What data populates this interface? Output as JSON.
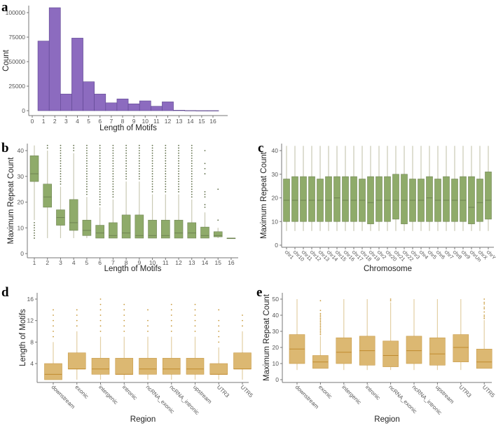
{
  "colors": {
    "hist_fill": "#8c6bbf",
    "hist_stroke": "#5e4690",
    "green_fill": "#8fab6a",
    "green_stroke": "#6f8452",
    "green_whisker": "#c9c9b4",
    "green_dot": "#5c6b45",
    "tan_fill": "#dcb872",
    "tan_stroke": "#c89b49",
    "tan_median": "#c08a2e",
    "tan_whisker": "#e3cfa4",
    "tan_dot": "#c89a3c",
    "axis": "#777777"
  },
  "chart_data": [
    {
      "panel": "a",
      "type": "bar",
      "xlabel": "Length of Motifs",
      "ylabel": "Count",
      "categories": [
        1,
        2,
        3,
        4,
        5,
        6,
        7,
        8,
        9,
        10,
        11,
        12,
        13,
        14,
        15,
        16
      ],
      "values": [
        71000,
        105000,
        17000,
        74000,
        29500,
        17000,
        8000,
        12000,
        7000,
        10000,
        4500,
        9000,
        500,
        200,
        100,
        100
      ],
      "xticks": [
        "0",
        "1",
        "2",
        "3",
        "4",
        "5",
        "6",
        "7",
        "8",
        "9",
        "10",
        "11",
        "12",
        "13",
        "14",
        "15",
        "16"
      ],
      "yticks": [
        "0",
        "25000",
        "50000",
        "75000",
        "100000"
      ],
      "xlim": [
        0,
        16
      ],
      "ylim": [
        0,
        105000
      ]
    },
    {
      "panel": "b",
      "type": "boxplot",
      "xlabel": "Length of Motifs",
      "ylabel": "Maximum Repeat Count",
      "yticks": [
        "0",
        "10",
        "20",
        "30",
        "40"
      ],
      "ylim": [
        0,
        40
      ],
      "boxes": [
        {
          "label": "1",
          "lo": 13,
          "q1": 28,
          "med": 31,
          "q3": 38,
          "hi": 42,
          "out": [
            6,
            7,
            8,
            9,
            10,
            11,
            12
          ]
        },
        {
          "label": "2",
          "lo": 6,
          "q1": 18,
          "med": 22,
          "q3": 27,
          "hi": 40,
          "out": [
            41,
            42
          ]
        },
        {
          "label": "3",
          "lo": 6,
          "q1": 11,
          "med": 14,
          "q3": 17,
          "hi": 26,
          "out": [
            27,
            28,
            29,
            30,
            31,
            32,
            33,
            34,
            35,
            36,
            37,
            38,
            39,
            40,
            41,
            42
          ]
        },
        {
          "label": "4",
          "lo": 6,
          "q1": 9,
          "med": 12,
          "q3": 21,
          "hi": 39,
          "out": [
            40,
            41,
            42
          ]
        },
        {
          "label": "5",
          "lo": 6,
          "q1": 7,
          "med": 9,
          "q3": 13,
          "hi": 22,
          "out": [
            23,
            24,
            25,
            26,
            27,
            28,
            29,
            30,
            31,
            32,
            33,
            34,
            35,
            36,
            37,
            38,
            39,
            40,
            41,
            42
          ]
        },
        {
          "label": "6",
          "lo": 6,
          "q1": 6,
          "med": 8,
          "q3": 11,
          "hi": 18,
          "out": [
            19,
            20,
            21,
            22,
            23,
            24,
            25,
            26,
            27,
            28,
            29,
            30,
            31,
            32,
            33,
            34,
            35,
            36,
            37,
            38,
            39,
            40,
            41,
            42
          ]
        },
        {
          "label": "7",
          "lo": 6,
          "q1": 6,
          "med": 7,
          "q3": 12,
          "hi": 21,
          "out": [
            22,
            23,
            24,
            25,
            26,
            27,
            28,
            29,
            30,
            31,
            32,
            33,
            34,
            35,
            36,
            37,
            38,
            39,
            40,
            41,
            42
          ]
        },
        {
          "label": "8",
          "lo": 6,
          "q1": 6,
          "med": 8,
          "q3": 15,
          "hi": 28,
          "out": [
            29,
            30,
            31,
            32,
            33,
            34,
            35,
            36,
            37,
            38,
            39,
            40,
            41,
            42
          ]
        },
        {
          "label": "9",
          "lo": 6,
          "q1": 6,
          "med": 7,
          "q3": 15,
          "hi": 28,
          "out": [
            29,
            30,
            31,
            32,
            33,
            34,
            35,
            36,
            37,
            38,
            39,
            40,
            41,
            42
          ]
        },
        {
          "label": "10",
          "lo": 6,
          "q1": 6,
          "med": 7,
          "q3": 13,
          "hi": 23,
          "out": [
            24,
            25,
            26,
            27,
            28,
            29,
            30,
            31,
            32,
            33,
            34,
            35,
            36,
            37,
            38,
            39,
            40,
            41,
            42
          ]
        },
        {
          "label": "11",
          "lo": 6,
          "q1": 6,
          "med": 7,
          "q3": 13,
          "hi": 23,
          "out": [
            24,
            25,
            26,
            27,
            28,
            29,
            30,
            31,
            32,
            33,
            34,
            35,
            36,
            37,
            38,
            39,
            40,
            41,
            42
          ]
        },
        {
          "label": "12",
          "lo": 6,
          "q1": 6,
          "med": 8,
          "q3": 13,
          "hi": 23,
          "out": [
            24,
            25,
            26,
            27,
            28,
            29,
            30,
            31,
            32,
            33,
            34,
            35,
            36,
            37,
            38,
            39,
            40,
            41,
            42
          ]
        },
        {
          "label": "13",
          "lo": 6,
          "q1": 6,
          "med": 8,
          "q3": 12,
          "hi": 21,
          "out": [
            22,
            23,
            24,
            25,
            26,
            27,
            28,
            29,
            30,
            31,
            32,
            33,
            34,
            35,
            36,
            37,
            38,
            39,
            40,
            41,
            42
          ]
        },
        {
          "label": "14",
          "lo": 6,
          "q1": 6,
          "med": 7,
          "q3": 10.3,
          "hi": 16,
          "out": [
            18,
            19,
            22,
            23,
            24,
            31,
            33,
            35,
            40
          ]
        },
        {
          "label": "15",
          "lo": 6,
          "q1": 6.5,
          "med": 7,
          "q3": 8.5,
          "hi": 10,
          "out": [
            13,
            25
          ]
        },
        {
          "label": "16",
          "lo": 6,
          "q1": 6,
          "med": 6,
          "q3": 6,
          "hi": 6,
          "out": []
        }
      ]
    },
    {
      "panel": "c",
      "type": "boxplot",
      "xlabel": "Chromosome",
      "ylabel": "Maximum Repeat Count",
      "yticks": [
        "0",
        "10",
        "20",
        "30",
        "40"
      ],
      "ylim": [
        0,
        40
      ],
      "boxes": [
        {
          "label": "chr1",
          "lo": 6,
          "q1": 10,
          "med": 19,
          "q3": 28,
          "hi": 42,
          "out": []
        },
        {
          "label": "chr10",
          "lo": 6,
          "q1": 10,
          "med": 19,
          "q3": 29,
          "hi": 42,
          "out": []
        },
        {
          "label": "chr11",
          "lo": 6,
          "q1": 10,
          "med": 19,
          "q3": 29,
          "hi": 42,
          "out": []
        },
        {
          "label": "chr12",
          "lo": 6,
          "q1": 10,
          "med": 19,
          "q3": 29,
          "hi": 42,
          "out": []
        },
        {
          "label": "chr13",
          "lo": 6,
          "q1": 10,
          "med": 19,
          "q3": 28,
          "hi": 42,
          "out": []
        },
        {
          "label": "chr14",
          "lo": 6,
          "q1": 10,
          "med": 19,
          "q3": 29,
          "hi": 42,
          "out": []
        },
        {
          "label": "chr15",
          "lo": 6,
          "q1": 10,
          "med": 20,
          "q3": 29,
          "hi": 42,
          "out": []
        },
        {
          "label": "chr16",
          "lo": 6,
          "q1": 10,
          "med": 19,
          "q3": 29,
          "hi": 42,
          "out": []
        },
        {
          "label": "chr17",
          "lo": 6,
          "q1": 10,
          "med": 19,
          "q3": 29,
          "hi": 42,
          "out": []
        },
        {
          "label": "chr18",
          "lo": 6,
          "q1": 10,
          "med": 19,
          "q3": 28,
          "hi": 42,
          "out": []
        },
        {
          "label": "chr19",
          "lo": 6,
          "q1": 9,
          "med": 18,
          "q3": 29,
          "hi": 42,
          "out": []
        },
        {
          "label": "chr2",
          "lo": 6,
          "q1": 10,
          "med": 19,
          "q3": 29,
          "hi": 42,
          "out": []
        },
        {
          "label": "chr20",
          "lo": 6,
          "q1": 10,
          "med": 19,
          "q3": 29,
          "hi": 42,
          "out": []
        },
        {
          "label": "chr21",
          "lo": 6,
          "q1": 11,
          "med": 19,
          "q3": 30,
          "hi": 42,
          "out": []
        },
        {
          "label": "chr22",
          "lo": 6,
          "q1": 9,
          "med": 19,
          "q3": 30,
          "hi": 42,
          "out": []
        },
        {
          "label": "chr3",
          "lo": 6,
          "q1": 10,
          "med": 19,
          "q3": 28,
          "hi": 42,
          "out": []
        },
        {
          "label": "chr4",
          "lo": 6,
          "q1": 10,
          "med": 19,
          "q3": 28,
          "hi": 42,
          "out": []
        },
        {
          "label": "chr5",
          "lo": 6,
          "q1": 10,
          "med": 20,
          "q3": 29,
          "hi": 42,
          "out": []
        },
        {
          "label": "chr6",
          "lo": 6,
          "q1": 10,
          "med": 19,
          "q3": 28,
          "hi": 42,
          "out": []
        },
        {
          "label": "chr7",
          "lo": 6,
          "q1": 10,
          "med": 19,
          "q3": 29,
          "hi": 42,
          "out": []
        },
        {
          "label": "chr8",
          "lo": 6,
          "q1": 10,
          "med": 19,
          "q3": 28,
          "hi": 42,
          "out": []
        },
        {
          "label": "chr9",
          "lo": 6,
          "q1": 10,
          "med": 19,
          "q3": 29,
          "hi": 42,
          "out": []
        },
        {
          "label": "chrUn",
          "lo": 6,
          "q1": 9,
          "med": 16,
          "q3": 29,
          "hi": 42,
          "out": []
        },
        {
          "label": "chrX",
          "lo": 6,
          "q1": 10,
          "med": 18,
          "q3": 28,
          "hi": 42,
          "out": []
        },
        {
          "label": "chrY",
          "lo": 6,
          "q1": 11,
          "med": 19,
          "q3": 31,
          "hi": 42,
          "out": []
        }
      ]
    },
    {
      "panel": "d",
      "type": "boxplot",
      "xlabel": "Region",
      "ylabel": "Length of Motifs",
      "yticks": [
        "4",
        "8",
        "12",
        "16"
      ],
      "ylim": [
        0,
        16
      ],
      "boxes": [
        {
          "label": "downstream",
          "lo": 1,
          "q1": 1,
          "med": 2,
          "q3": 4,
          "hi": 8,
          "out": [
            9,
            10,
            11,
            12,
            13,
            14
          ]
        },
        {
          "label": "exonic",
          "lo": 1,
          "q1": 3,
          "med": 3,
          "q3": 6,
          "hi": 10,
          "out": [
            11,
            12,
            13,
            14
          ]
        },
        {
          "label": "intergenic",
          "lo": 1,
          "q1": 2,
          "med": 3,
          "q3": 5,
          "hi": 9,
          "out": [
            10,
            11,
            12,
            13,
            14,
            15,
            16
          ]
        },
        {
          "label": "intronic",
          "lo": 1,
          "q1": 2,
          "med": 2,
          "q3": 5,
          "hi": 9,
          "out": [
            10,
            11,
            12,
            13,
            14,
            15
          ]
        },
        {
          "label": "ncRNA_exonic",
          "lo": 1,
          "q1": 2,
          "med": 3,
          "q3": 5,
          "hi": 9,
          "out": [
            10,
            11,
            12,
            14
          ]
        },
        {
          "label": "ncRNA_intronic",
          "lo": 1,
          "q1": 2,
          "med": 3,
          "q3": 5,
          "hi": 9,
          "out": [
            10,
            11,
            12,
            13,
            14,
            15
          ]
        },
        {
          "label": "upstream",
          "lo": 1,
          "q1": 2,
          "med": 3,
          "q3": 5,
          "hi": 9,
          "out": [
            10,
            11,
            12,
            13,
            14,
            15
          ]
        },
        {
          "label": "UTR3",
          "lo": 1,
          "q1": 2,
          "med": 2,
          "q3": 4,
          "hi": 7,
          "out": [
            8,
            9,
            10,
            11,
            12,
            14
          ]
        },
        {
          "label": "UTR5",
          "lo": 1,
          "q1": 3,
          "med": 3,
          "q3": 6,
          "hi": 10,
          "out": [
            11,
            12,
            13
          ]
        }
      ]
    },
    {
      "panel": "e",
      "type": "boxplot",
      "xlabel": "Region",
      "ylabel": "Maximum Repeat Count",
      "yticks": [
        "0",
        "10",
        "20",
        "30",
        "40",
        "50"
      ],
      "ylim": [
        0,
        50
      ],
      "boxes": [
        {
          "label": "downstream",
          "lo": 6,
          "q1": 10,
          "med": 19,
          "q3": 28,
          "hi": 50,
          "out": []
        },
        {
          "label": "exonic",
          "lo": 7,
          "q1": 7,
          "med": 11,
          "q3": 15,
          "hi": 27,
          "out": [
            28,
            29,
            30,
            31,
            32,
            33,
            34,
            35,
            36,
            37,
            38,
            39,
            40,
            41,
            43,
            49
          ]
        },
        {
          "label": "intergenic",
          "lo": 6,
          "q1": 10,
          "med": 17,
          "q3": 26,
          "hi": 50,
          "out": []
        },
        {
          "label": "intronic",
          "lo": 6,
          "q1": 9,
          "med": 18,
          "q3": 27,
          "hi": 50,
          "out": []
        },
        {
          "label": "ncRNA_exonic",
          "lo": 6,
          "q1": 8,
          "med": 15,
          "q3": 24,
          "hi": 48,
          "out": [
            49,
            50
          ]
        },
        {
          "label": "ncRNA_intronic",
          "lo": 6,
          "q1": 10,
          "med": 18,
          "q3": 27,
          "hi": 50,
          "out": []
        },
        {
          "label": "upstream",
          "lo": 6,
          "q1": 9,
          "med": 16,
          "q3": 26,
          "hi": 50,
          "out": []
        },
        {
          "label": "UTR3",
          "lo": 6,
          "q1": 11,
          "med": 20,
          "q3": 28,
          "hi": 50,
          "out": []
        },
        {
          "label": "UTR5",
          "lo": 7,
          "q1": 7,
          "med": 11,
          "q3": 19,
          "hi": 37,
          "out": [
            38,
            39,
            40,
            42,
            44,
            45,
            47,
            48,
            50
          ]
        }
      ]
    }
  ]
}
